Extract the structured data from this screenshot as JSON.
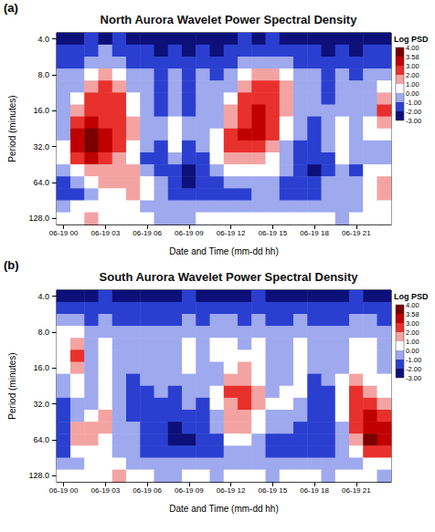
{
  "chart_data": [
    {
      "type": "heatmap",
      "label": "(a)",
      "title": "North Aurora Wavelet Power Spectral Density",
      "x_label": "Date and Time (mm-dd hh)",
      "y_label": "Period (minutes)",
      "x": [
        "06-19 00",
        null,
        null,
        "06-19 03",
        null,
        null,
        "06-19 06",
        null,
        null,
        "06-19 09",
        null,
        null,
        "06-19 12",
        null,
        null,
        "06-19 15",
        null,
        null,
        "06-19 18",
        null,
        null,
        "06-19 21",
        null,
        null
      ],
      "y": [
        4,
        5,
        6.3,
        8,
        10.1,
        12.7,
        16,
        20.2,
        25.4,
        32,
        40.3,
        50.8,
        64,
        80.6,
        101.6,
        128
      ],
      "yticks": [
        {
          "value": 4,
          "label": "4.0"
        },
        {
          "value": 8,
          "label": "8.0"
        },
        {
          "value": 16,
          "label": "16.0"
        },
        {
          "value": 32,
          "label": "32.0"
        },
        {
          "value": 64,
          "label": "64.0"
        },
        {
          "value": 128,
          "label": "128.0"
        }
      ],
      "values": [
        [
          -2.5,
          -2.5,
          -2,
          -2.5,
          -2,
          -2.5,
          -2.5,
          -2.5,
          -2.5,
          -2.5,
          -2.5,
          -2.5,
          -2.5,
          -2,
          -2.5,
          -2,
          -2.5,
          -2.5,
          -2.5,
          -2.5,
          -2.5,
          -2.5,
          -2.5,
          -2.5
        ],
        [
          -2,
          -2,
          -1.5,
          -1,
          -1.5,
          -2,
          -2,
          -2.5,
          -2,
          -2.5,
          -2,
          -2.5,
          -2,
          -1.5,
          -1.5,
          -1.5,
          -2,
          -2,
          -2,
          -2.5,
          -2,
          -2.5,
          -2,
          -2
        ],
        [
          -1.5,
          -1.5,
          -1,
          -0.5,
          -1,
          -1.5,
          -1.5,
          -2,
          -1.5,
          -2,
          -1.5,
          -2,
          -1.5,
          -1,
          -0.5,
          -0.5,
          -1,
          -1.5,
          -1.5,
          -2,
          -1.5,
          -2,
          -1.5,
          -1.5
        ],
        [
          -1,
          -1,
          0.5,
          1.5,
          0.5,
          -1,
          -1,
          -1.5,
          -1,
          -1.5,
          -1,
          -1.5,
          -1,
          0.5,
          1.5,
          1.5,
          0.5,
          -1,
          -1,
          -1.5,
          -1,
          -1.5,
          -1,
          -0.5
        ],
        [
          -1,
          -0.5,
          1.5,
          2.5,
          1.5,
          -0.5,
          -1,
          -1.5,
          -0.5,
          -1.5,
          -1,
          -1,
          -0.5,
          1.5,
          2.5,
          2.5,
          1.5,
          -0.5,
          -1,
          -1.5,
          -1,
          -1,
          -1,
          0.5
        ],
        [
          -1,
          0.5,
          2.5,
          2.5,
          2,
          0,
          -1,
          -1.5,
          -0.5,
          -1.5,
          -1,
          -0.5,
          0.5,
          2,
          2.5,
          2.5,
          1.5,
          -1,
          -1,
          -1.5,
          -0.5,
          -1,
          -0.5,
          1.5
        ],
        [
          -1,
          1.5,
          2.5,
          2.5,
          2.5,
          0.5,
          -1,
          -1.5,
          -0.5,
          -1.5,
          -1,
          -0.5,
          1,
          2.5,
          3,
          2.5,
          1,
          -1,
          -1,
          -1,
          -0.5,
          -1,
          -0.5,
          2.5
        ],
        [
          -0.5,
          2.5,
          3,
          2.5,
          2.5,
          1,
          -1,
          -1,
          0.5,
          -1,
          -0.5,
          -0.5,
          1.5,
          2.5,
          3,
          2.5,
          0.5,
          -1,
          -1.5,
          -1,
          0,
          -1,
          0,
          1.5
        ],
        [
          -0.5,
          3,
          3.6,
          3,
          2.5,
          1,
          -0.5,
          -1,
          0.5,
          -1,
          -0.5,
          0,
          2,
          3,
          3.2,
          2,
          0,
          -1,
          -1.5,
          -1,
          0.5,
          -0.5,
          0,
          0.5
        ],
        [
          0,
          3.2,
          3.7,
          3.2,
          2.5,
          0.5,
          -1,
          -1.5,
          0,
          -1.5,
          -1,
          0.5,
          2,
          2.5,
          2.5,
          1.5,
          -0.5,
          -1.5,
          -2,
          -1,
          0.5,
          -1,
          -0.5,
          -0.5
        ],
        [
          0,
          2.5,
          3,
          2.8,
          1.5,
          0,
          -1.5,
          -2,
          -1,
          -2,
          -1.5,
          0,
          1,
          1.5,
          1.5,
          0.5,
          -1,
          -2,
          -2,
          -1.5,
          0,
          -1,
          -0.5,
          -0.5
        ],
        [
          -1,
          0.5,
          1.5,
          1.5,
          1,
          1,
          -0.5,
          -2,
          -1.5,
          -2.5,
          -2,
          -1,
          0,
          0,
          0.5,
          0,
          -1,
          -2,
          -2.5,
          -1.5,
          -1,
          -1.5,
          0,
          0.5
        ],
        [
          -1.5,
          -1,
          0,
          1.5,
          1.5,
          1.5,
          0.5,
          -1,
          -1.5,
          -2.5,
          -2,
          -1.5,
          -1,
          -1,
          -1,
          -1,
          -1.5,
          -2,
          -2,
          -1,
          -1,
          -1,
          0.5,
          1.5
        ],
        [
          -2,
          -1.5,
          -0.5,
          0,
          0.5,
          1,
          0.5,
          -0.5,
          -1.5,
          -2,
          -1.5,
          -1.5,
          -1.5,
          -1.5,
          -1,
          -1,
          -1.5,
          -1.5,
          -1.5,
          -1,
          -1,
          -0.5,
          0.5,
          1
        ],
        [
          -0.5,
          0,
          0.5,
          0.5,
          0,
          0,
          -0.5,
          -1,
          -1,
          -1,
          -0.5,
          -0.5,
          -1,
          -1,
          -1,
          -0.5,
          -1,
          -1,
          -0.5,
          -0.5,
          -1,
          -0.5,
          0,
          0
        ],
        [
          0.5,
          0.5,
          1,
          0.5,
          0.5,
          0.5,
          0,
          -0.5,
          -0.5,
          -0.5,
          0,
          0,
          0,
          0.5,
          0.5,
          0,
          0.5,
          0.5,
          0.5,
          0,
          -0.5,
          0,
          0,
          0
        ]
      ],
      "colorbar": {
        "title": "Log PSD",
        "range": [
          -3,
          4
        ],
        "ticks": [
          {
            "value": -3,
            "label": "-3.00"
          },
          {
            "value": -2,
            "label": "-2.00"
          },
          {
            "value": -1,
            "label": "-1.00"
          },
          {
            "value": 0,
            "label": "0.00"
          },
          {
            "value": 1,
            "label": "1.00"
          },
          {
            "value": 2,
            "label": "2.00"
          },
          {
            "value": 3,
            "label": "3.00"
          },
          {
            "value": 3.58,
            "label": "3.58"
          },
          {
            "value": 4,
            "label": "4.00"
          }
        ],
        "colors": [
          "#0c1078",
          "#2a3fd0",
          "#9ea9ee",
          "#ffffff",
          "#f4a3a3",
          "#e8302c",
          "#c00000",
          "#7a0000"
        ]
      }
    },
    {
      "type": "heatmap",
      "label": "(b)",
      "title": "South Aurora Wavelet Power Spectral Density",
      "x_label": "Date and Time (mm-dd hh)",
      "y_label": "Period (minutes)",
      "x": [
        "06-19 00",
        null,
        null,
        "06-19 03",
        null,
        null,
        "06-19 06",
        null,
        null,
        "06-19 09",
        null,
        null,
        "06-19 12",
        null,
        null,
        "06-19 15",
        null,
        null,
        "06-19 18",
        null,
        null,
        "06-19 21",
        null,
        null
      ],
      "y": [
        4,
        5,
        6.3,
        8,
        10.1,
        12.7,
        16,
        20.2,
        25.4,
        32,
        40.3,
        50.8,
        64,
        80.6,
        101.6,
        128
      ],
      "yticks": [
        {
          "value": 4,
          "label": "4.0"
        },
        {
          "value": 8,
          "label": "8.0"
        },
        {
          "value": 16,
          "label": "16.0"
        },
        {
          "value": 32,
          "label": "32.0"
        },
        {
          "value": 64,
          "label": "64.0"
        },
        {
          "value": 128,
          "label": "128.0"
        }
      ],
      "values": [
        [
          -2.5,
          -2.5,
          -2.5,
          -2,
          -2.5,
          -2.5,
          -2.5,
          -2.5,
          -2.5,
          -2,
          -2.5,
          -2.5,
          -2.5,
          -2.5,
          -2,
          -2.5,
          -2.5,
          -2.5,
          -2.5,
          -2.5,
          -2.5,
          -2,
          -2.5,
          -2.5
        ],
        [
          -2,
          -1.5,
          -2,
          -1.5,
          -2,
          -2,
          -2,
          -2,
          -2,
          -1.5,
          -2,
          -2,
          -1.5,
          -2,
          -1.5,
          -2,
          -2,
          -1.5,
          -2,
          -2,
          -2,
          -1.5,
          -2,
          -2
        ],
        [
          -1,
          -1,
          -1.5,
          -1,
          -1.5,
          -1.5,
          -1.5,
          -1.5,
          -1.5,
          -1,
          -1.5,
          -1,
          -1,
          -1.5,
          -1,
          -1.5,
          -1.5,
          -1,
          -1.5,
          -1.5,
          -1.5,
          -1,
          -1,
          -1.5
        ],
        [
          0,
          0.5,
          -1,
          -0.5,
          -1,
          -1,
          -1,
          -1,
          -1,
          -0.5,
          -1,
          -0.5,
          -0.5,
          -1,
          -0.5,
          -1,
          -1,
          -0.5,
          -1,
          -1,
          -1,
          -0.5,
          -0.5,
          -1
        ],
        [
          0.5,
          1.5,
          -0.5,
          0,
          -0.5,
          -1,
          -0.5,
          -1,
          -1,
          0,
          -1,
          0,
          0,
          -0.5,
          0,
          -1,
          -1,
          0,
          -1,
          -1,
          -0.5,
          0,
          0,
          -0.5
        ],
        [
          0.5,
          2,
          -0.5,
          0,
          -0.5,
          -1,
          -0.5,
          -1,
          -1,
          0,
          -1,
          0,
          0,
          0,
          0,
          -1,
          -0.5,
          0,
          -1,
          -1,
          -0.5,
          0,
          0,
          -0.5
        ],
        [
          0,
          1.5,
          -0.5,
          0,
          -1,
          -1,
          -1,
          -1,
          -1,
          0,
          -1,
          -0.5,
          0.5,
          1,
          0.5,
          -1,
          -0.5,
          0,
          -1,
          -1,
          -0.5,
          0.5,
          0,
          -0.5
        ],
        [
          -0.5,
          0.5,
          -1,
          0,
          -1,
          -1.5,
          -1,
          -1,
          -1,
          -0.5,
          -1,
          -0.5,
          1.5,
          1.5,
          0.5,
          -1,
          -0.5,
          0,
          -1.5,
          -1,
          0,
          1,
          0.5,
          0
        ],
        [
          -1,
          0,
          -1,
          0,
          -1,
          -1.5,
          -1.5,
          -1,
          -1.5,
          -0.5,
          -1,
          0,
          2,
          2,
          1,
          -0.5,
          0,
          0,
          -1.5,
          -1.5,
          0,
          2,
          1,
          0.5
        ],
        [
          -1.5,
          -0.5,
          -0.5,
          0.5,
          -1,
          -1.5,
          -1.5,
          -1.5,
          -1.5,
          -1,
          -1.5,
          0,
          1.5,
          2,
          1,
          0,
          0,
          -0.5,
          -1.5,
          -1.5,
          0.5,
          2.5,
          2,
          1.5
        ],
        [
          -2,
          -0.5,
          0.5,
          1.5,
          -0.5,
          -1.5,
          -2,
          -2,
          -2,
          -1.5,
          -1.5,
          -0.5,
          1.5,
          1.5,
          0.5,
          -0.5,
          -0.5,
          -1,
          -2,
          -2,
          0,
          2,
          3,
          2.5
        ],
        [
          -2,
          1,
          1.5,
          1,
          -0.5,
          -1,
          -2,
          -2,
          -2.5,
          -2,
          -2,
          -1,
          1.5,
          1,
          0,
          -1,
          -1,
          -1.5,
          -2,
          -2,
          -0.5,
          2,
          3.3,
          3
        ],
        [
          -1.5,
          1.5,
          1.5,
          0.5,
          -0.5,
          -1,
          -1.5,
          -2,
          -2.5,
          -2.5,
          -2,
          -1.5,
          0,
          0,
          -0.5,
          -1.5,
          -1.5,
          -2,
          -2,
          -2,
          -1,
          1.5,
          3.7,
          3.2
        ],
        [
          -1.5,
          0,
          0.5,
          0,
          -0.5,
          -1,
          -1.5,
          -2,
          -2,
          -2,
          -1.5,
          -1.5,
          -1,
          -1,
          -1,
          -1.5,
          -1.5,
          -1.5,
          -1.5,
          -1.5,
          -1,
          0.5,
          2.5,
          2
        ],
        [
          -1,
          -0.5,
          0,
          0,
          0,
          -0.5,
          -1,
          -1,
          -1,
          -1,
          -1,
          -1,
          -1,
          -1,
          -1,
          -1,
          -1,
          -1,
          -1,
          -1,
          -0.5,
          -0.5,
          0,
          0
        ],
        [
          0,
          0.5,
          0.5,
          0.5,
          1,
          0.5,
          0,
          -0.5,
          -0.5,
          0,
          0,
          -0.5,
          0,
          0,
          0,
          -0.5,
          0,
          0,
          0,
          -0.5,
          0,
          0,
          0,
          -0.5
        ]
      ],
      "colorbar": {
        "title": "Log PSD",
        "range": [
          -3,
          4
        ],
        "ticks": [
          {
            "value": -3,
            "label": "-3.00"
          },
          {
            "value": -2,
            "label": "-2.00"
          },
          {
            "value": -1,
            "label": "-1.00"
          },
          {
            "value": 0,
            "label": "0.00"
          },
          {
            "value": 1,
            "label": "1.00"
          },
          {
            "value": 2,
            "label": "2.00"
          },
          {
            "value": 3,
            "label": "3.00"
          },
          {
            "value": 3.58,
            "label": "3.58"
          },
          {
            "value": 4,
            "label": "4.00"
          }
        ],
        "colors": [
          "#0c1078",
          "#2a3fd0",
          "#9ea9ee",
          "#ffffff",
          "#f4a3a3",
          "#e8302c",
          "#c00000",
          "#7a0000"
        ]
      }
    }
  ]
}
